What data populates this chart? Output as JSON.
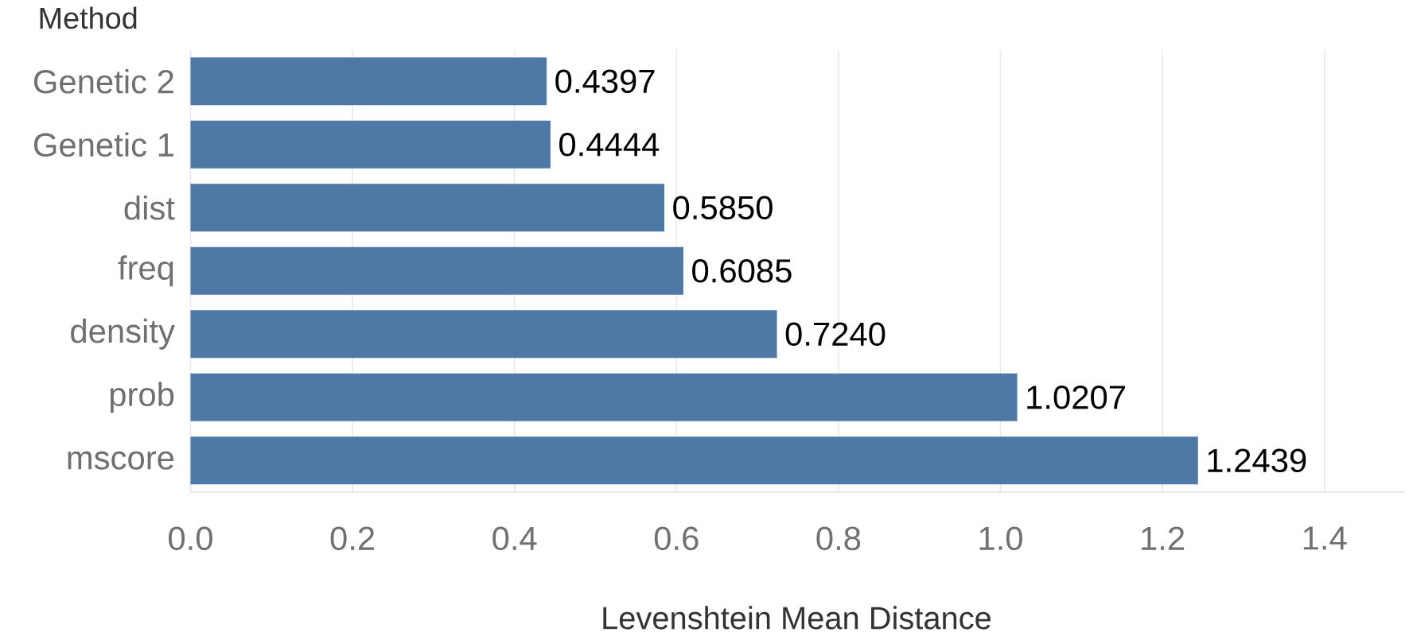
{
  "chart_data": {
    "type": "bar",
    "orientation": "horizontal",
    "xlabel": "Levenshtein Mean Distance",
    "ylabel": "Method",
    "categories": [
      "Genetic 2",
      "Genetic 1",
      "dist",
      "freq",
      "density",
      "prob",
      "mscore"
    ],
    "values": [
      0.4397,
      0.4444,
      0.585,
      0.6085,
      0.724,
      1.0207,
      1.2439
    ],
    "value_labels": [
      "0.4397",
      "0.4444",
      "0.5850",
      "0.6085",
      "0.7240",
      "1.0207",
      "1.2439"
    ],
    "color": "#4e79a7",
    "xlim": [
      0,
      1.5
    ],
    "xticks": [
      {
        "value": 0,
        "label": "0.0"
      },
      {
        "value": 0.2,
        "label": "0.2"
      },
      {
        "value": 0.4,
        "label": "0.4"
      },
      {
        "value": 0.6,
        "label": "0.6"
      },
      {
        "value": 0.8,
        "label": "0.8"
      },
      {
        "value": 1.0,
        "label": "1.0"
      },
      {
        "value": 1.2,
        "label": "1.2"
      },
      {
        "value": 1.4,
        "label": "1.4"
      }
    ],
    "grid": "x"
  }
}
